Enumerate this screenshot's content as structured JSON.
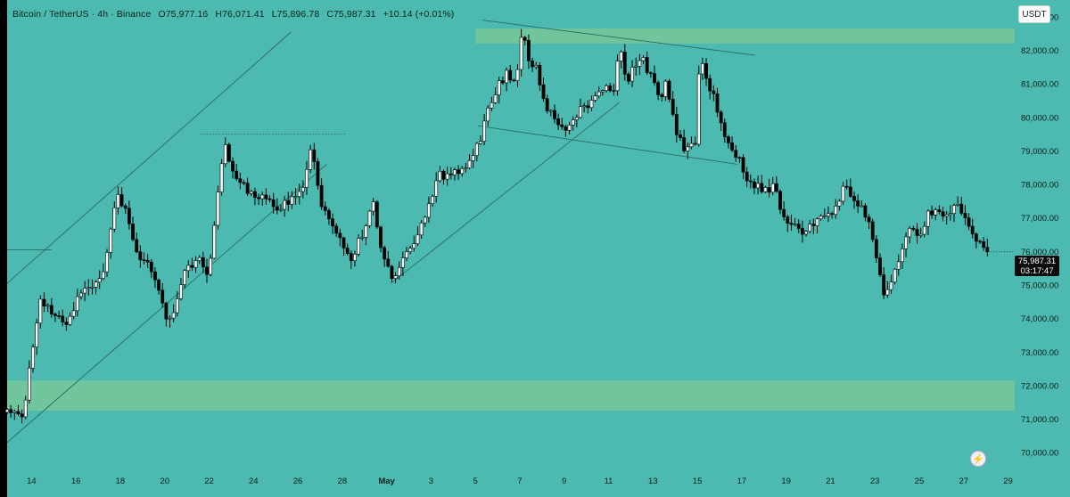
{
  "header": {
    "symbol": "Bitcoin / TetherUS · 4h · Binance",
    "open": "O75,977.16",
    "high": "H76,071.41",
    "low": "L75,896.78",
    "close": "C75,987.31",
    "change": "+10.14 (+0.01%)"
  },
  "currency_button": "USDT",
  "price_badge": {
    "price": "75,987.31",
    "countdown": "03:17:47"
  },
  "tv_icon": "tradingview-lightning-icon",
  "colors": {
    "chart_background": "#4cbab0",
    "zone_fill": "#74c79a",
    "bullish_candle": "#ffffff",
    "bearish_candle": "#000000",
    "trendline": "#2b6b66"
  },
  "chart_data": {
    "type": "candlestick",
    "title": "Bitcoin / TetherUS · 4h · Binance",
    "xlabel": "",
    "ylabel": "",
    "ylim": [
      69500,
      83500
    ],
    "grid": false,
    "y_ticks": [
      "83,000.00",
      "82,000.00",
      "81,000.00",
      "80,000.00",
      "79,000.00",
      "78,000.00",
      "77,000.00",
      "76,000.00",
      "75,000.00",
      "74,000.00",
      "73,000.00",
      "72,000.00",
      "71,000.00",
      "70,000.00"
    ],
    "y_tick_values": [
      83000,
      82000,
      81000,
      80000,
      79000,
      78000,
      77000,
      76000,
      75000,
      74000,
      73000,
      72000,
      71000,
      70000
    ],
    "x_ticks": [
      {
        "label": "14",
        "day": 14
      },
      {
        "label": "16",
        "day": 16
      },
      {
        "label": "18",
        "day": 18
      },
      {
        "label": "20",
        "day": 20
      },
      {
        "label": "22",
        "day": 22
      },
      {
        "label": "24",
        "day": 24
      },
      {
        "label": "26",
        "day": 26
      },
      {
        "label": "28",
        "day": 28
      },
      {
        "label": "May",
        "day": 30
      },
      {
        "label": "3",
        "day": 32
      },
      {
        "label": "5",
        "day": 34
      },
      {
        "label": "7",
        "day": 36
      },
      {
        "label": "9",
        "day": 38
      },
      {
        "label": "11",
        "day": 40
      },
      {
        "label": "13",
        "day": 42
      },
      {
        "label": "15",
        "day": 44
      },
      {
        "label": "17",
        "day": 46
      },
      {
        "label": "19",
        "day": 48
      },
      {
        "label": "21",
        "day": 50
      },
      {
        "label": "23",
        "day": 52
      },
      {
        "label": "25",
        "day": 54
      },
      {
        "label": "27",
        "day": 56
      },
      {
        "label": "29",
        "day": 58
      }
    ],
    "x_range_days": [
      12.9,
      58.3
    ],
    "last_price": 75987.31,
    "zones": [
      {
        "name": "resistance-zone",
        "y_from": 82200,
        "y_to": 82650,
        "x_from_day": 34,
        "x_to_day": 58.3
      },
      {
        "name": "support-zone",
        "y_from": 71250,
        "y_to": 72150,
        "x_from_day": 12.9,
        "x_to_day": 58.3
      }
    ],
    "lines": [
      {
        "name": "channel-upper",
        "x1": 12.9,
        "y1": 75050,
        "x2": 25.7,
        "y2": 82550,
        "style": "solid"
      },
      {
        "name": "channel-lower",
        "x1": 12.9,
        "y1": 70300,
        "x2": 27.3,
        "y2": 78600,
        "style": "solid"
      },
      {
        "name": "resistance-line-dotted",
        "x1": 21.6,
        "y1": 79500,
        "x2": 28.2,
        "y2": 79500,
        "style": "dotted"
      },
      {
        "name": "uptrend-line",
        "x1": 30.2,
        "y1": 75050,
        "x2": 40.5,
        "y2": 80450,
        "style": "solid"
      },
      {
        "name": "wedge-upper",
        "x1": 34.3,
        "y1": 82900,
        "x2": 46.6,
        "y2": 81850,
        "style": "solid"
      },
      {
        "name": "wedge-lower",
        "x1": 34.1,
        "y1": 79750,
        "x2": 45.8,
        "y2": 78600,
        "style": "solid"
      },
      {
        "name": "left-level",
        "x1": 12.9,
        "y1": 76050,
        "x2": 14.9,
        "y2": 76050,
        "style": "solid"
      }
    ],
    "waypoints": [
      [
        12.9,
        71200
      ],
      [
        13.6,
        71000
      ],
      [
        14.0,
        73000
      ],
      [
        14.4,
        74500
      ],
      [
        15.0,
        74200
      ],
      [
        15.6,
        73900
      ],
      [
        16.3,
        74900
      ],
      [
        17.2,
        75200
      ],
      [
        17.8,
        77700
      ],
      [
        18.3,
        77100
      ],
      [
        18.8,
        75800
      ],
      [
        19.3,
        75600
      ],
      [
        19.9,
        74400
      ],
      [
        20.2,
        73800
      ],
      [
        20.8,
        75300
      ],
      [
        21.5,
        75800
      ],
      [
        22.0,
        75300
      ],
      [
        22.3,
        77300
      ],
      [
        22.7,
        79200
      ],
      [
        23.1,
        78200
      ],
      [
        23.6,
        77900
      ],
      [
        24.3,
        77600
      ],
      [
        25.0,
        77300
      ],
      [
        25.6,
        77500
      ],
      [
        26.2,
        77900
      ],
      [
        26.6,
        79100
      ],
      [
        27.0,
        77500
      ],
      [
        27.5,
        76900
      ],
      [
        27.9,
        76400
      ],
      [
        28.4,
        75800
      ],
      [
        28.9,
        76500
      ],
      [
        29.4,
        77500
      ],
      [
        29.8,
        75900
      ],
      [
        30.3,
        75200
      ],
      [
        30.8,
        75800
      ],
      [
        31.4,
        76500
      ],
      [
        31.9,
        77300
      ],
      [
        32.3,
        78300
      ],
      [
        32.8,
        78200
      ],
      [
        33.3,
        78400
      ],
      [
        33.8,
        78700
      ],
      [
        34.2,
        79300
      ],
      [
        34.6,
        80300
      ],
      [
        35.0,
        80900
      ],
      [
        35.4,
        81300
      ],
      [
        35.8,
        81000
      ],
      [
        36.1,
        82600
      ],
      [
        36.4,
        81700
      ],
      [
        36.8,
        81400
      ],
      [
        37.1,
        80400
      ],
      [
        37.6,
        79900
      ],
      [
        38.0,
        79500
      ],
      [
        38.4,
        80000
      ],
      [
        38.9,
        80300
      ],
      [
        39.4,
        80600
      ],
      [
        39.9,
        80900
      ],
      [
        40.2,
        80700
      ],
      [
        40.5,
        82200
      ],
      [
        40.8,
        81000
      ],
      [
        41.2,
        81600
      ],
      [
        41.5,
        81800
      ],
      [
        41.9,
        81200
      ],
      [
        42.3,
        80600
      ],
      [
        42.6,
        81000
      ],
      [
        43.0,
        79700
      ],
      [
        43.4,
        79000
      ],
      [
        43.9,
        79300
      ],
      [
        44.1,
        81800
      ],
      [
        44.4,
        81200
      ],
      [
        44.8,
        80500
      ],
      [
        45.2,
        79600
      ],
      [
        45.6,
        79000
      ],
      [
        46.0,
        78600
      ],
      [
        46.3,
        78100
      ],
      [
        46.9,
        77900
      ],
      [
        47.2,
        77700
      ],
      [
        47.5,
        78000
      ],
      [
        47.8,
        77100
      ],
      [
        48.2,
        76900
      ],
      [
        48.7,
        76600
      ],
      [
        49.2,
        76800
      ],
      [
        49.7,
        77000
      ],
      [
        50.3,
        77300
      ],
      [
        50.6,
        77900
      ],
      [
        51.0,
        77600
      ],
      [
        51.4,
        77400
      ],
      [
        51.8,
        76800
      ],
      [
        52.1,
        75700
      ],
      [
        52.4,
        74800
      ],
      [
        52.8,
        75200
      ],
      [
        53.2,
        76100
      ],
      [
        53.6,
        76800
      ],
      [
        54.0,
        76500
      ],
      [
        54.4,
        77100
      ],
      [
        54.8,
        77300
      ],
      [
        55.2,
        77000
      ],
      [
        55.6,
        77500
      ],
      [
        56.0,
        77100
      ],
      [
        56.4,
        76600
      ],
      [
        56.8,
        76100
      ],
      [
        57.1,
        75987.31
      ]
    ]
  }
}
